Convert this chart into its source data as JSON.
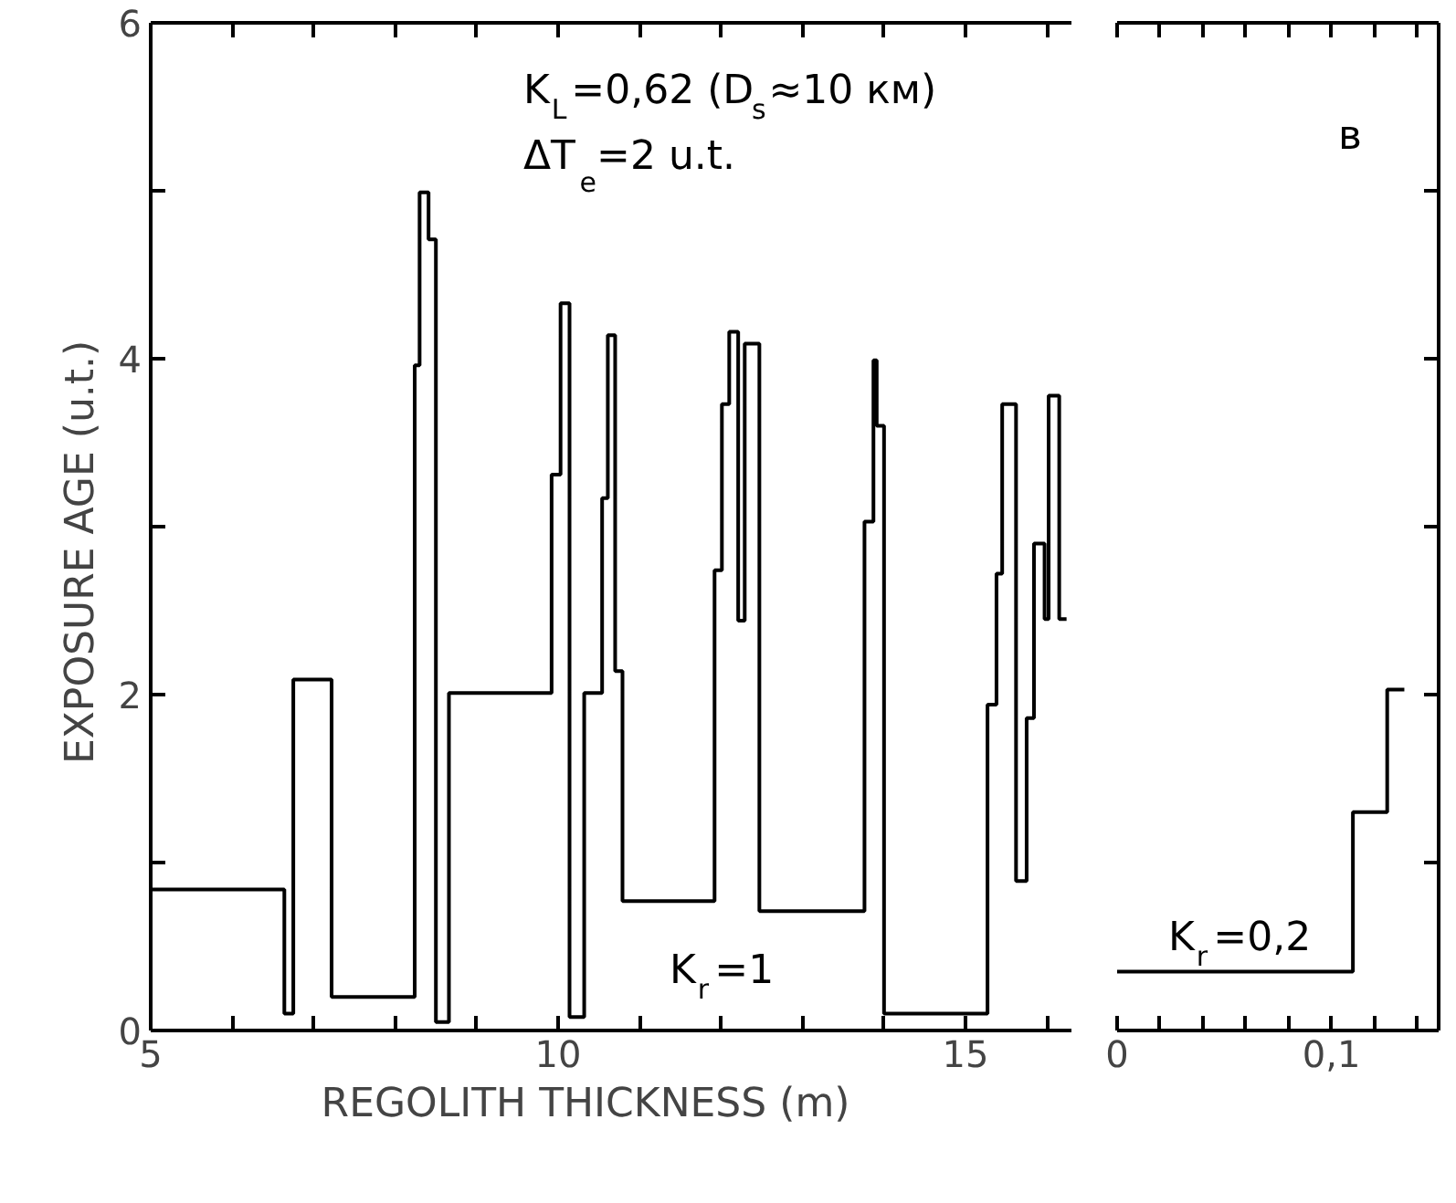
{
  "chart_data": [
    {
      "type": "step",
      "xlabel": "REGOLITH   THICKNESS   (m)",
      "ylabel": "EXPOSURE   AGE   (u.t.)",
      "x": [
        5,
        6.64,
        6.75,
        7.22,
        8.24,
        8.3,
        8.41,
        8.5,
        8.66,
        9.92,
        10.03,
        10.14,
        10.32,
        10.54,
        10.61,
        10.7,
        10.79,
        11.92,
        12.01,
        12.1,
        12.21,
        12.29,
        12.47,
        13.76,
        13.87,
        13.91,
        14.0,
        15.27,
        15.38,
        15.45,
        15.62,
        15.75,
        15.84,
        15.97,
        16.02,
        16.15,
        16.24
      ],
      "series": [
        {
          "color": "#000000",
          "values": [
            0.84,
            0.1,
            2.09,
            0.2,
            3.96,
            4.99,
            4.71,
            0.05,
            2.01,
            3.31,
            4.33,
            0.08,
            2.01,
            3.17,
            4.14,
            2.14,
            0.77,
            2.74,
            3.73,
            4.16,
            2.44,
            4.09,
            0.71,
            3.03,
            3.99,
            3.6,
            0.1,
            1.94,
            2.72,
            3.73,
            0.89,
            1.86,
            2.9,
            2.45,
            3.78,
            2.45,
            2.45
          ]
        }
      ],
      "xlim": [
        5,
        16.3
      ],
      "xticks": [
        5,
        {
          "value": 6,
          "label": null
        },
        {
          "value": 7,
          "label": null
        },
        {
          "value": 8,
          "label": null
        },
        {
          "value": 9,
          "label": null
        },
        10,
        {
          "value": 11,
          "label": null
        },
        {
          "value": 12,
          "label": null
        },
        {
          "value": 13,
          "label": null
        },
        {
          "value": 14,
          "label": null
        },
        15,
        {
          "value": 16,
          "label": null
        }
      ],
      "ylim": [
        0,
        6
      ],
      "yticks": [
        0,
        {
          "value": 1,
          "label": null
        },
        2,
        {
          "value": 3,
          "label": null
        },
        4,
        {
          "value": 5,
          "label": null
        },
        6
      ],
      "grid": false,
      "annotations": [
        "K$_{L}$=0,62 (D$_{s}$≈10 км)",
        "ΔT$_{e}$=2 u.t.",
        "K$_{r}$=1"
      ]
    },
    {
      "type": "step",
      "x": [
        0,
        0.11,
        0.126,
        0.134
      ],
      "series": [
        {
          "color": "#000000",
          "values": [
            0.35,
            1.3,
            2.03,
            2.03
          ]
        }
      ],
      "xlim": [
        0,
        0.15
      ],
      "xticks": [
        {
          "value": 0,
          "label": "0"
        },
        {
          "value": 0.02,
          "label": null
        },
        {
          "value": 0.04,
          "label": null
        },
        {
          "value": 0.06,
          "label": null
        },
        {
          "value": 0.08,
          "label": null
        },
        {
          "value": 0.1,
          "label": "0,1"
        },
        {
          "value": 0.12,
          "label": null
        },
        {
          "value": 0.14,
          "label": null
        }
      ],
      "ylim": [
        0,
        6
      ],
      "yticks": [
        0,
        {
          "value": 1,
          "label": null
        },
        2,
        {
          "value": 3,
          "label": null
        },
        4,
        {
          "value": 5,
          "label": null
        },
        6
      ],
      "tick_labels": "x",
      "grid": false,
      "annotations": [
        "в",
        "K$_{r}$=0,2"
      ]
    }
  ]
}
